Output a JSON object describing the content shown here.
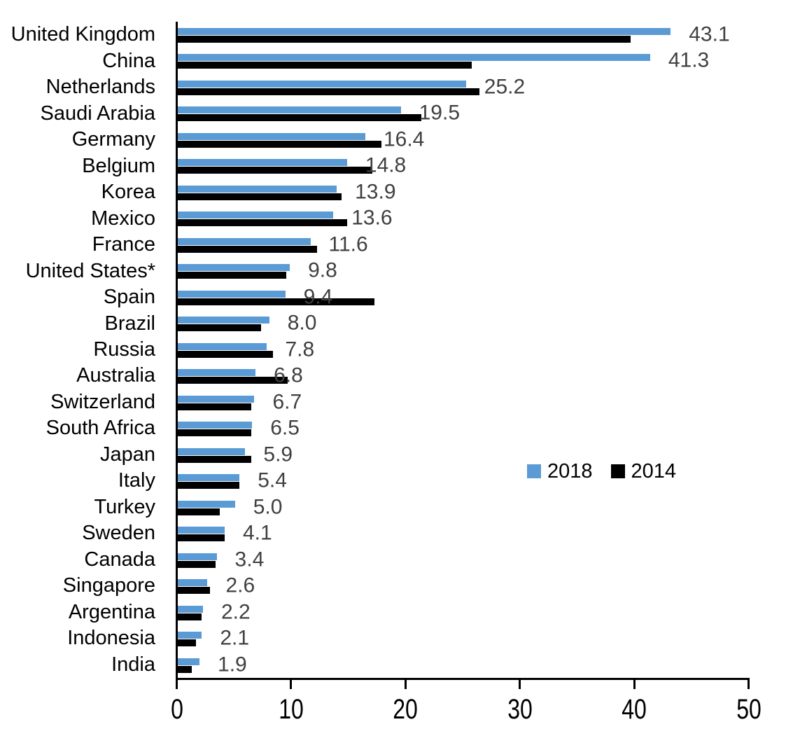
{
  "chart_data": {
    "type": "bar",
    "orientation": "horizontal",
    "title": "",
    "xlabel": "",
    "ylabel": "",
    "xlim": [
      0,
      50
    ],
    "x_ticks": [
      "0",
      "10",
      "20",
      "30",
      "40",
      "50"
    ],
    "x_tick_values": [
      0,
      10,
      20,
      30,
      40,
      50
    ],
    "grid": false,
    "legend_position": "middle-right",
    "value_label_color": "#404040",
    "categories": [
      "United Kingdom",
      "China",
      "Netherlands",
      "Saudi Arabia",
      "Germany",
      "Belgium",
      "Korea",
      "Mexico",
      "France",
      "United States*",
      "Spain",
      "Brazil",
      "Russia",
      "Australia",
      "Switzerland",
      "South Africa",
      "Japan",
      "Italy",
      "Turkey",
      "Sweden",
      "Canada",
      "Singapore",
      "Argentina",
      "Indonesia",
      "India"
    ],
    "series": [
      {
        "name": "2018",
        "color": "#5B9BD5",
        "values": [
          43.1,
          41.3,
          25.2,
          19.5,
          16.4,
          14.8,
          13.9,
          13.6,
          11.6,
          9.8,
          9.4,
          8.0,
          7.8,
          6.8,
          6.7,
          6.5,
          5.9,
          5.4,
          5.0,
          4.1,
          3.4,
          2.6,
          2.2,
          2.1,
          1.9
        ],
        "data_labels": [
          "43.1",
          "41.3",
          "25.2",
          "19.5",
          "16.4",
          "14.8",
          "13.9",
          "13.6",
          "11.6",
          "9.8",
          "9.4",
          "8.0",
          "7.8",
          "6.8",
          "6.7",
          "6.5",
          "5.9",
          "5.4",
          "5.0",
          "4.1",
          "3.4",
          "2.6",
          "2.2",
          "2.1",
          "1.9"
        ]
      },
      {
        "name": "2014",
        "color": "#000000",
        "values": [
          39.6,
          25.7,
          26.4,
          21.3,
          17.8,
          17.0,
          14.3,
          14.8,
          12.2,
          9.5,
          17.2,
          7.3,
          8.3,
          9.6,
          6.4,
          6.4,
          6.4,
          5.4,
          3.7,
          4.1,
          3.3,
          2.8,
          2.1,
          1.6,
          1.2
        ]
      }
    ]
  }
}
